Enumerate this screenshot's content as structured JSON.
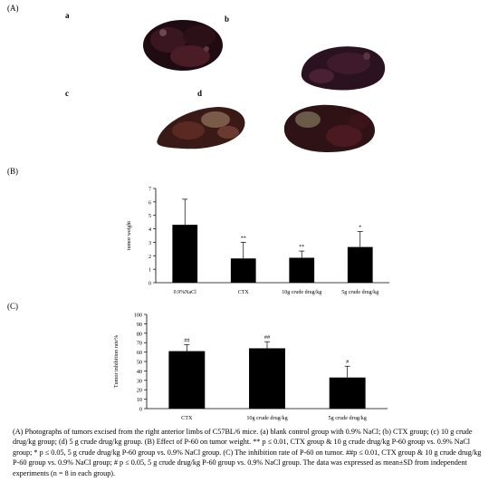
{
  "panel_labels": {
    "a": "(A)",
    "b": "(B)",
    "c": "(C)"
  },
  "photo_letters": [
    "a",
    "b",
    "c",
    "d"
  ],
  "colors": {
    "bar": "#000000",
    "tumor_dark": "#2a1018",
    "tumor_mid": "#5a2330",
    "tumor_light": "#8a6a58"
  },
  "chart_data": [
    {
      "type": "bar",
      "title": "",
      "xlabel": "",
      "ylabel": "tumor weight",
      "ylim": [
        0,
        7
      ],
      "yticks": [
        "0",
        "1",
        "2",
        "3",
        "4",
        "5",
        "6",
        "7"
      ],
      "categories": [
        "0.9%NaCl",
        "CTX",
        "10g crude drug/kg",
        "5g crude drug/kg"
      ],
      "values": [
        4.3,
        1.8,
        1.85,
        2.65
      ],
      "errors": [
        1.9,
        1.2,
        0.5,
        1.15
      ],
      "annotations": [
        "",
        "**",
        "**",
        "*"
      ],
      "grid": false
    },
    {
      "type": "bar",
      "title": "",
      "xlabel": "",
      "ylabel": "Tumor inhibition rate%",
      "ylim": [
        0,
        100
      ],
      "yticks": [
        "0",
        "10",
        "20",
        "30",
        "40",
        "50",
        "60",
        "70",
        "80",
        "90",
        "100"
      ],
      "categories": [
        "CTX",
        "10g crude drug/kg",
        "5g crude drug/kg"
      ],
      "values": [
        61,
        64,
        33
      ],
      "errors": [
        7,
        7,
        12
      ],
      "annotations": [
        "##",
        "##",
        "#"
      ],
      "grid": false
    }
  ],
  "caption": {
    "text": "(A) Photographs of tumors excised from the right anterior limbs of C57BL/6 mice. (a) blank control group with 0.9% NaCl; (b) CTX group; (c) 10 g crude drug/kg group; (d) 5 g crude drug/kg group. (B) Effect of P-60 on tumor weight. ** p ≤ 0.01, CTX group & 10 g crude drug/kg P-60 group vs. 0.9% NaCl group; * p ≤ 0.05, 5 g crude drug/kg P-60 group vs. 0.9% NaCl group. (C) The inhibition rate of P-60 on tumor. ##p ≤ 0.01, CTX group & 10 g crude drug/kg P-60 group vs. 0.9% NaCl group; # p ≤ 0.05, 5 g crude drug/kg P-60 group vs. 0.9% NaCl group. The data was expressed as mean±SD from independent experiments (n = 8 in each group)."
  }
}
